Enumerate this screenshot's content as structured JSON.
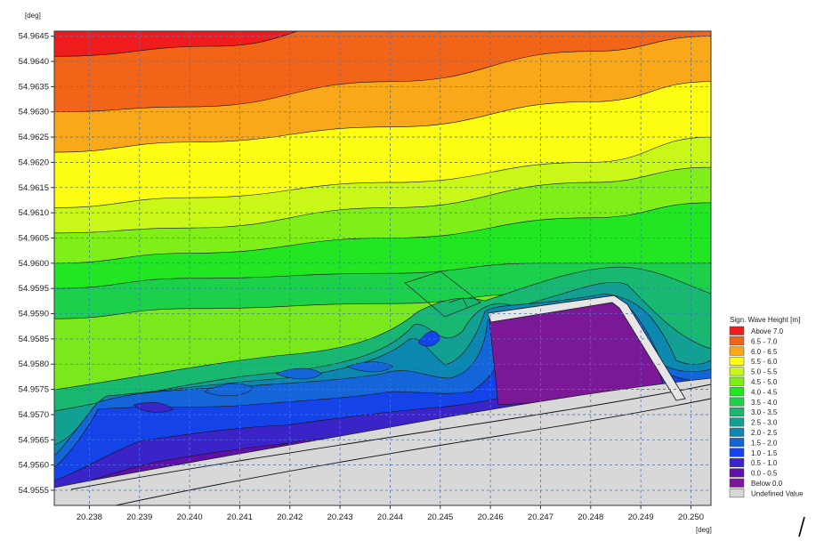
{
  "chart_data": {
    "type": "heatmap",
    "subtype": "filled-contour-map",
    "title": "",
    "xlabel": "",
    "ylabel": "",
    "x_unit": "[deg]",
    "y_unit": "[deg]",
    "xlim": [
      20.2373,
      20.2504
    ],
    "ylim": [
      54.9552,
      54.9646
    ],
    "x_ticks": [
      20.238,
      20.239,
      20.24,
      20.241,
      20.242,
      20.243,
      20.244,
      20.245,
      20.246,
      20.247,
      20.248,
      20.249,
      20.25
    ],
    "x_tick_labels": [
      "20.238",
      "20.239",
      "20.240",
      "20.241",
      "20.242",
      "20.243",
      "20.244",
      "20.245",
      "20.246",
      "20.247",
      "20.248",
      "20.249",
      "20.250"
    ],
    "y_ticks": [
      54.9555,
      54.956,
      54.9565,
      54.957,
      54.9575,
      54.958,
      54.9585,
      54.959,
      54.9595,
      54.96,
      54.9605,
      54.961,
      54.9615,
      54.962,
      54.9625,
      54.963,
      54.9635,
      54.964,
      54.9645
    ],
    "y_tick_labels": [
      "54.9555",
      "54.9560",
      "54.9565",
      "54.9570",
      "54.9575",
      "54.9580",
      "54.9585",
      "54.9590",
      "54.9595",
      "54.9600",
      "54.9605",
      "54.9610",
      "54.9615",
      "54.9620",
      "54.9625",
      "54.9630",
      "54.9635",
      "54.9640",
      "54.9645"
    ],
    "grid": true,
    "grid_style": "dashed",
    "grid_color": "#3a78d6",
    "legend_placement": "right-bottom",
    "legend": {
      "title": "Sign. Wave Height [m]",
      "entries": [
        {
          "label": "Above 7.0",
          "color": "#ee1c1c"
        },
        {
          "label": "6.5 - 7.0",
          "color": "#f26418"
        },
        {
          "label": "6.0 - 6.5",
          "color": "#f8a818"
        },
        {
          "label": "5.5 - 6.0",
          "color": "#fdfd14"
        },
        {
          "label": "5.0 - 5.5",
          "color": "#c8f718"
        },
        {
          "label": "4.5 - 5.0",
          "color": "#80ee18"
        },
        {
          "label": "4.0 - 4.5",
          "color": "#22e622"
        },
        {
          "label": "3.5 - 4.0",
          "color": "#1cd04a"
        },
        {
          "label": "3.0 - 3.5",
          "color": "#18b870"
        },
        {
          "label": "2.5 - 3.0",
          "color": "#12a090"
        },
        {
          "label": "2.0 - 2.5",
          "color": "#0c88b0"
        },
        {
          "label": "1.5 - 2.0",
          "color": "#1466d8"
        },
        {
          "label": "1.0 - 1.5",
          "color": "#1444e8"
        },
        {
          "label": "0.5 - 1.0",
          "color": "#3a24c8"
        },
        {
          "label": "0.0 - 0.5",
          "color": "#6010a8"
        },
        {
          "label": "Below 0.0",
          "color": "#7a1898"
        },
        {
          "label": "Undefined Value",
          "color": "#d8d8d8"
        }
      ]
    },
    "bands_top_to_bottom": [
      {
        "level": "Above 7.0",
        "boundary_lower_y_at_x": [
          [
            20.2373,
            54.9641
          ],
          [
            20.2405,
            54.9643
          ],
          [
            20.2435,
            54.9648
          ]
        ]
      },
      {
        "level": "6.5 - 7.0",
        "boundary_lower_y_at_x": [
          [
            20.2373,
            54.963
          ],
          [
            20.24,
            54.9631
          ],
          [
            20.244,
            54.9636
          ],
          [
            20.248,
            54.9642
          ],
          [
            20.2504,
            54.9645
          ]
        ]
      },
      {
        "level": "6.0 - 6.5",
        "boundary_lower_y_at_x": [
          [
            20.2373,
            54.9622
          ],
          [
            20.24,
            54.9624
          ],
          [
            20.244,
            54.9627
          ],
          [
            20.248,
            54.9632
          ],
          [
            20.2504,
            54.9636
          ]
        ]
      },
      {
        "level": "5.5 - 6.0",
        "boundary_lower_y_at_x": [
          [
            20.2373,
            54.9611
          ],
          [
            20.24,
            54.9613
          ],
          [
            20.244,
            54.9616
          ],
          [
            20.248,
            54.962
          ],
          [
            20.2504,
            54.9625
          ]
        ]
      },
      {
        "level": "5.0 - 5.5",
        "boundary_lower_y_at_x": [
          [
            20.2373,
            54.9606
          ],
          [
            20.24,
            54.9607
          ],
          [
            20.244,
            54.9611
          ],
          [
            20.248,
            54.9616
          ],
          [
            20.2504,
            54.9619
          ]
        ]
      },
      {
        "level": "4.5 - 5.0",
        "boundary_lower_y_at_x": [
          [
            20.2373,
            54.96
          ],
          [
            20.24,
            54.9602
          ],
          [
            20.244,
            54.9605
          ],
          [
            20.248,
            54.9609
          ],
          [
            20.2504,
            54.9612
          ]
        ]
      },
      {
        "level": "4.0 - 4.5",
        "boundary_lower_y_at_x": [
          [
            20.2373,
            54.9595
          ],
          [
            20.24,
            54.9597
          ],
          [
            20.244,
            54.9598
          ],
          [
            20.247,
            54.96
          ],
          [
            20.2504,
            54.96
          ]
        ]
      },
      {
        "level": "3.5 - 4.0",
        "boundary_lower_y_at_x": [
          [
            20.2373,
            54.9589
          ],
          [
            20.24,
            54.9591
          ],
          [
            20.244,
            54.9592
          ],
          [
            20.247,
            54.9594
          ],
          [
            20.2504,
            54.9592
          ]
        ]
      }
    ],
    "nearshore_bands": [
      "3.0 - 3.5",
      "2.5 - 3.0",
      "2.0 - 2.5",
      "1.5 - 2.0",
      "1.0 - 1.5",
      "0.5 - 1.0",
      "0.0 - 0.5",
      "Below 0.0"
    ],
    "land_region": "Undefined Value",
    "structures": [
      "pier-outline",
      "breakwater-outline",
      "coastline-line",
      "road-line"
    ]
  }
}
